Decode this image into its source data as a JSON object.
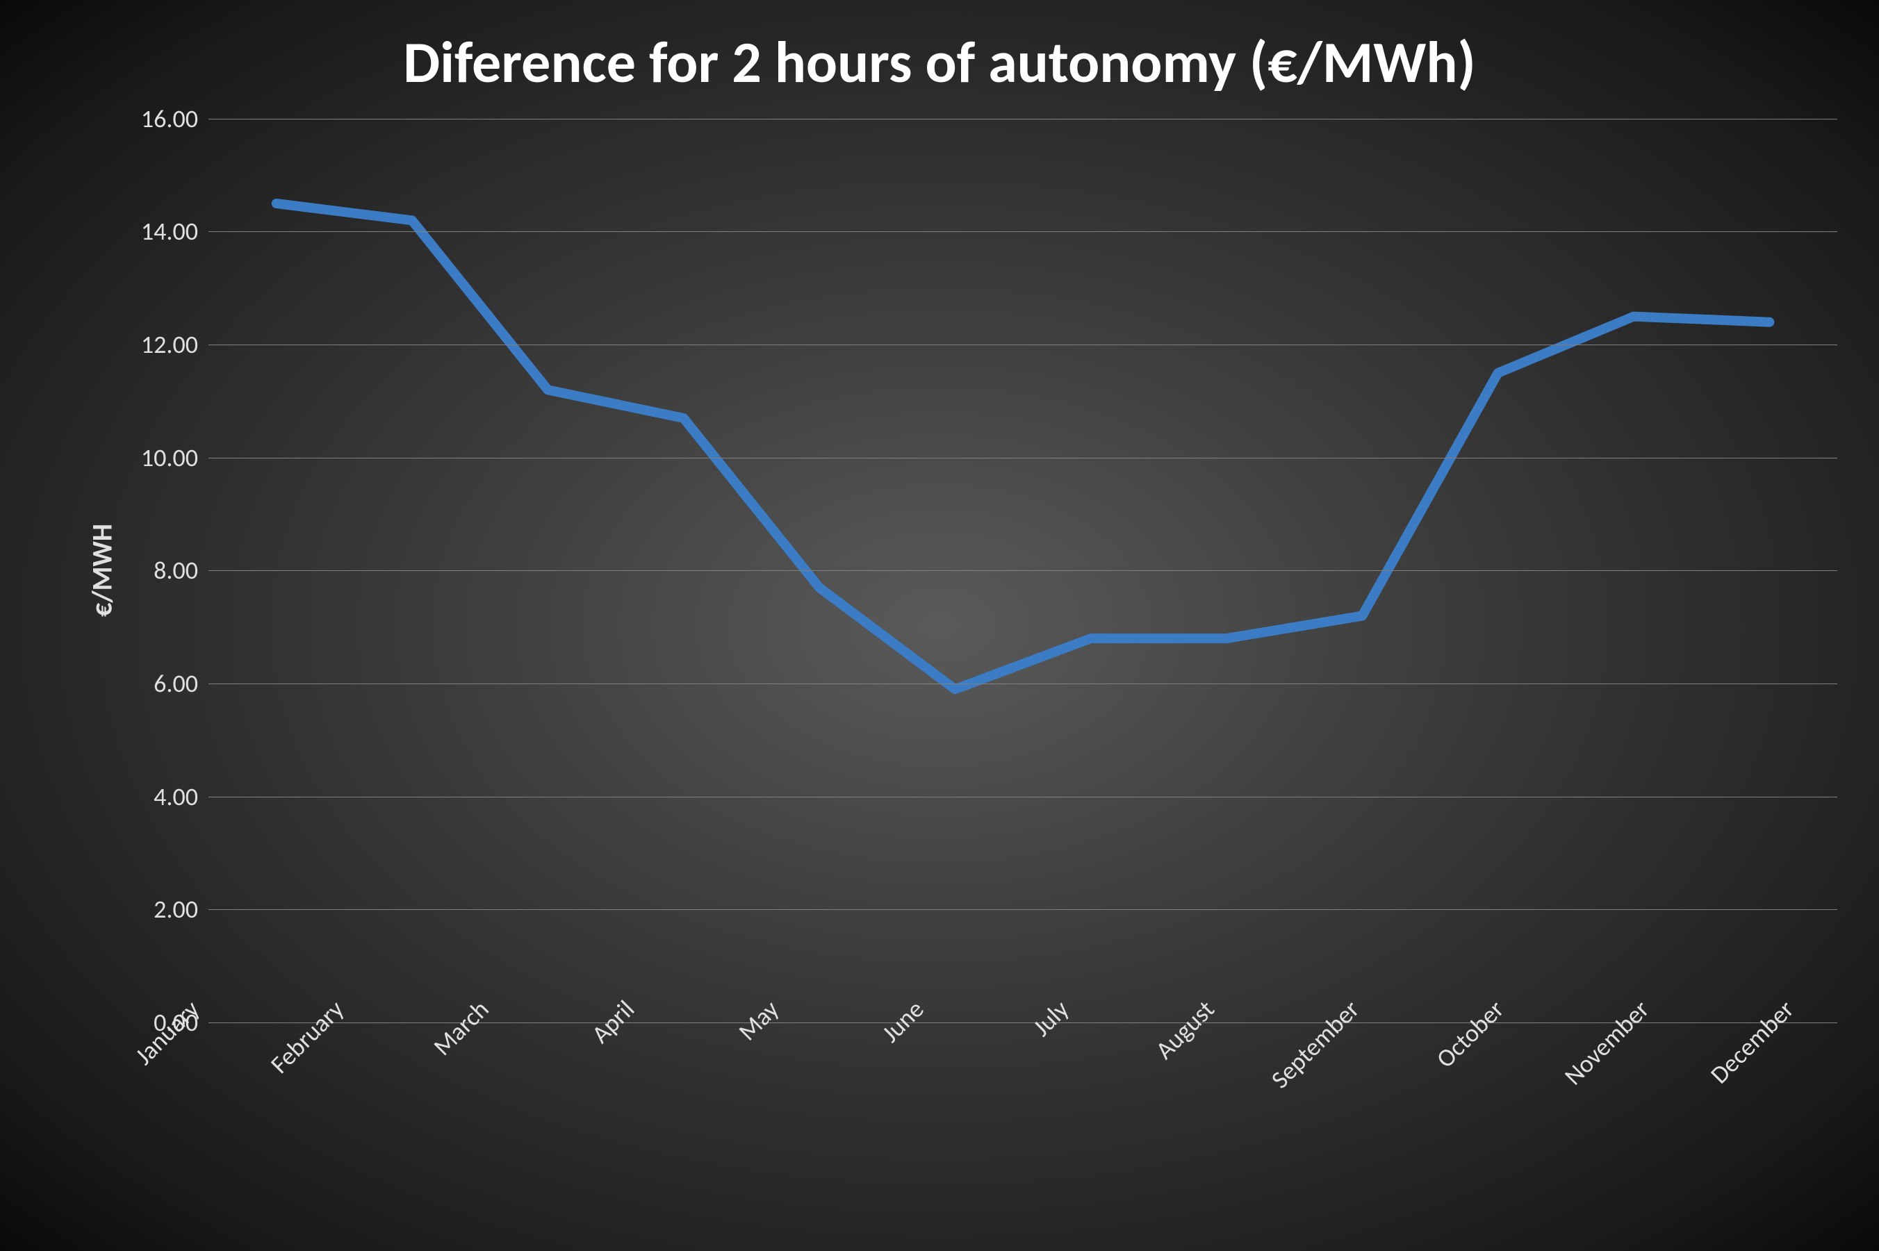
{
  "chart": {
    "type": "line",
    "title": "Diference for 2 hours of autonomy (€/MWh)",
    "title_fontsize": 84,
    "title_color": "#ffffff",
    "ylabel": "€/MWH",
    "ylabel_fontsize": 40,
    "ylabel_color": "#e0e0e0",
    "categories": [
      "January",
      "February",
      "March",
      "April",
      "May",
      "June",
      "July",
      "August",
      "September",
      "October",
      "November",
      "December"
    ],
    "values": [
      14.5,
      14.2,
      11.2,
      10.7,
      7.7,
      5.9,
      6.8,
      6.8,
      7.2,
      11.5,
      12.5,
      12.4
    ],
    "line_color": "#3b7cc4",
    "line_width": 14,
    "ylim": [
      0,
      16
    ],
    "ytick_step": 2,
    "ytick_labels": [
      "0.00",
      "2.00",
      "4.00",
      "6.00",
      "8.00",
      "10.00",
      "12.00",
      "14.00",
      "16.00"
    ],
    "tick_fontsize": 36,
    "tick_color": "#e0e0e0",
    "grid_color": "#808080",
    "background_gradient": {
      "type": "radial",
      "center": "#5a5a5a",
      "mid": "#3a3a3a",
      "outer": "#1a1a1a",
      "edge": "#0a0a0a"
    },
    "x_label_rotation": -45
  }
}
